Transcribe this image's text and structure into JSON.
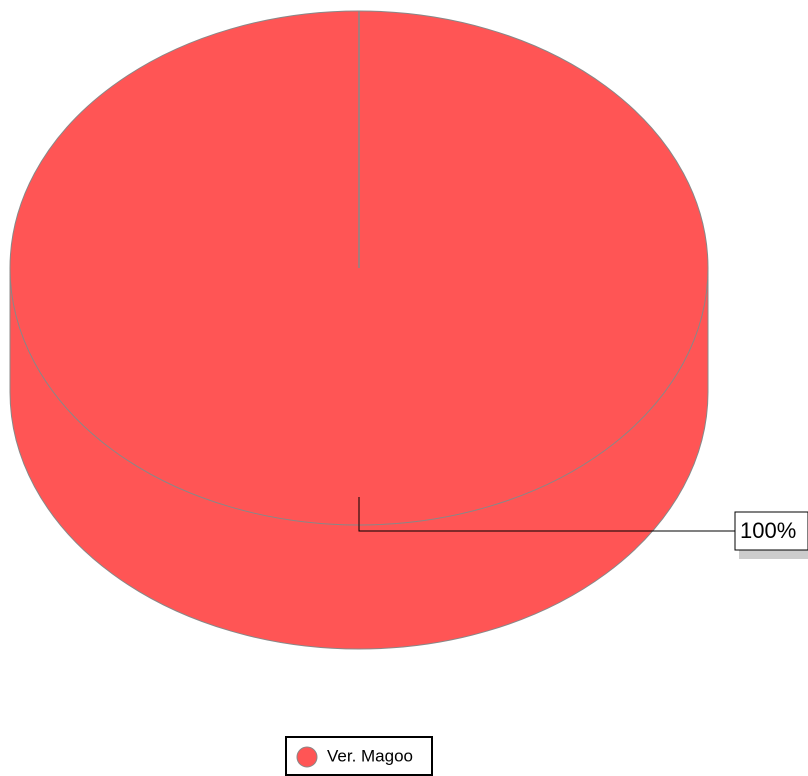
{
  "chart_data": {
    "type": "pie",
    "categories": [
      "Ver. Magoo"
    ],
    "values": [
      100
    ],
    "value_labels": [
      "100%"
    ],
    "colors": [
      "#ff5555"
    ],
    "legend": "bottom"
  }
}
